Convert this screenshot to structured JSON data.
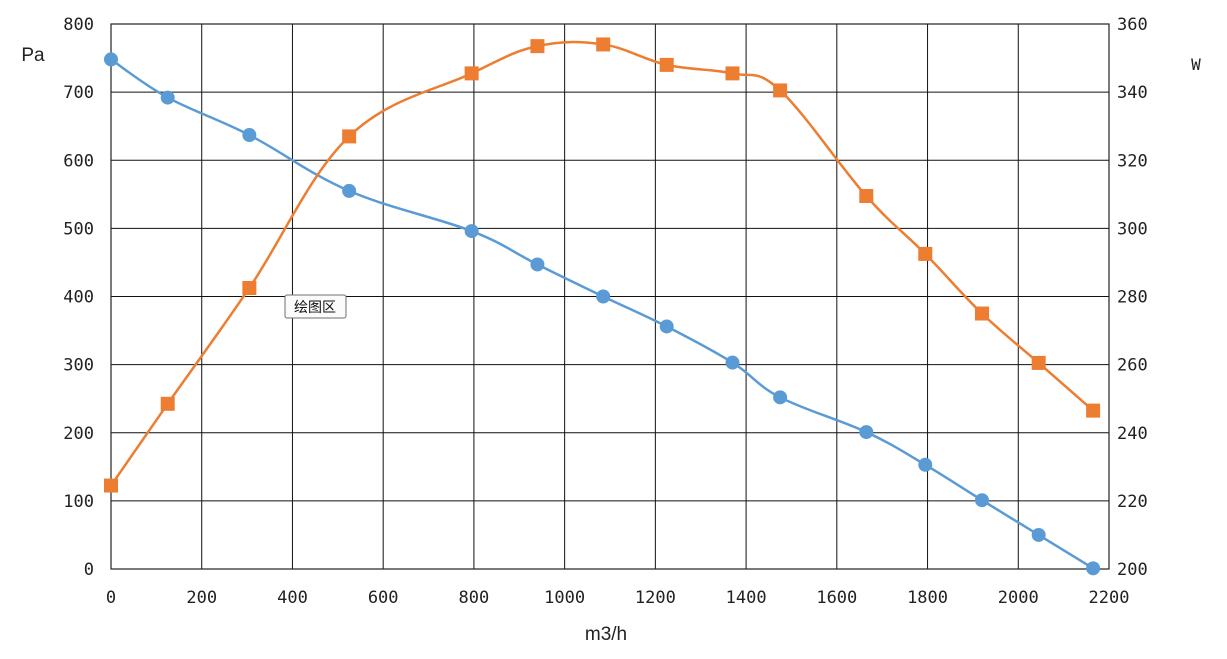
{
  "chart_data": {
    "type": "line",
    "xlabel": "m3/h",
    "ylabel_left": "Pa",
    "ylabel_right": "W",
    "xlim": [
      0,
      2200
    ],
    "x_ticks": [
      0,
      200,
      400,
      600,
      800,
      1000,
      1200,
      1400,
      1600,
      1800,
      2000,
      2200
    ],
    "ylim_left": [
      0,
      800
    ],
    "y_ticks_left": [
      0,
      100,
      200,
      300,
      400,
      500,
      600,
      700,
      800
    ],
    "ylim_right": [
      200,
      360
    ],
    "y_ticks_right": [
      200,
      220,
      240,
      260,
      280,
      300,
      320,
      340,
      360
    ],
    "grid": true,
    "legend": "none",
    "series": [
      {
        "axis": "left",
        "color": "#5B9BD5",
        "marker": "circle",
        "x": [
          0,
          125,
          305,
          525,
          795,
          940,
          1085,
          1225,
          1370,
          1475,
          1665,
          1795,
          1920,
          2045,
          2165
        ],
        "y": [
          748,
          692,
          637,
          555,
          496,
          447,
          400,
          356,
          303,
          252,
          201,
          153,
          101,
          50,
          1
        ]
      },
      {
        "axis": "right",
        "color": "#ED7D31",
        "marker": "square",
        "x": [
          0,
          125,
          305,
          525,
          795,
          940,
          1085,
          1225,
          1370,
          1475,
          1665,
          1795,
          1920,
          2045,
          2165
        ],
        "y": [
          224.5,
          248.5,
          282.5,
          327,
          345.5,
          353.5,
          354,
          348,
          345.5,
          340.5,
          309.5,
          292.5,
          275,
          260.5,
          246.5
        ]
      }
    ],
    "annotations": [
      {
        "text": "绘图区",
        "x": 400,
        "y": 390
      }
    ]
  }
}
